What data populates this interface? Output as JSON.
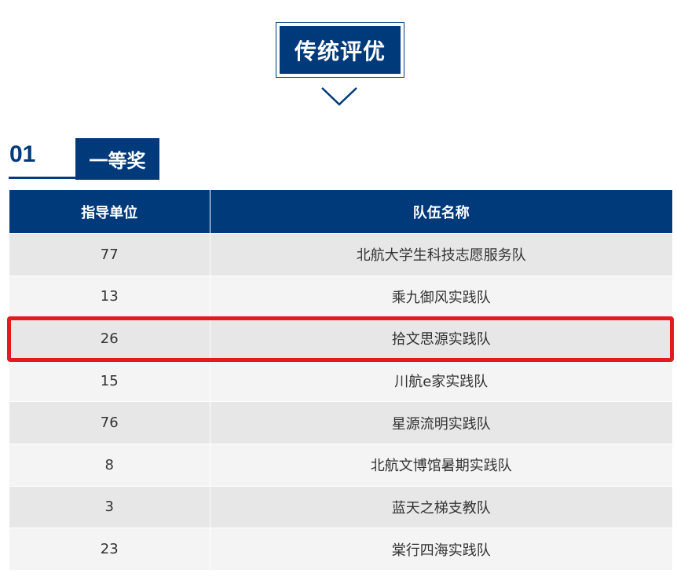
{
  "section_title": "传统评优",
  "award": {
    "number": "01",
    "label": "一等奖"
  },
  "table": {
    "headers": [
      "指导单位",
      "队伍名称"
    ],
    "rows": [
      [
        "77",
        "北航大学生科技志愿服务队"
      ],
      [
        "13",
        "乘九御风实践队"
      ],
      [
        "26",
        "拾文思源实践队"
      ],
      [
        "15",
        "川航e家实践队"
      ],
      [
        "76",
        "星源流明实践队"
      ],
      [
        "8",
        "北航文博馆暑期实践队"
      ],
      [
        "3",
        "蓝天之梯支教队"
      ],
      [
        "23",
        "棠行四海实践队"
      ]
    ],
    "highlighted_row": 2
  },
  "colors": {
    "brand": "#003a7a",
    "highlight": "#e31b1f"
  }
}
